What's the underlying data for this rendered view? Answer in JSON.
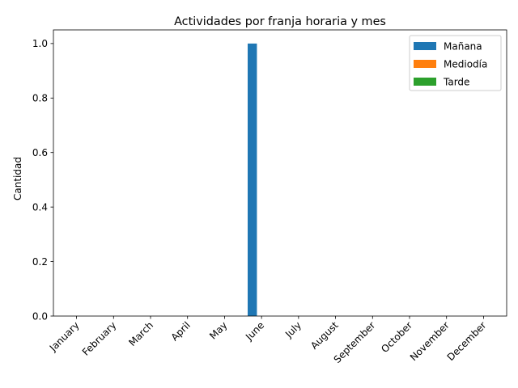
{
  "chart_data": {
    "type": "bar",
    "title": "Actividades por franja horaria y mes",
    "xlabel": "",
    "ylabel": "Cantidad",
    "categories": [
      "January",
      "February",
      "March",
      "April",
      "May",
      "June",
      "July",
      "August",
      "September",
      "October",
      "November",
      "December"
    ],
    "series": [
      {
        "name": "Mañana",
        "color": "#1f77b4",
        "values": [
          0,
          0,
          0,
          0,
          0,
          1,
          0,
          0,
          0,
          0,
          0,
          0
        ]
      },
      {
        "name": "Mediodía",
        "color": "#ff7f0e",
        "values": [
          0,
          0,
          0,
          0,
          0,
          0,
          0,
          0,
          0,
          0,
          0,
          0
        ]
      },
      {
        "name": "Tarde",
        "color": "#2ca02c",
        "values": [
          0,
          0,
          0,
          0,
          0,
          0,
          0,
          0,
          0,
          0,
          0,
          0
        ]
      }
    ],
    "ylim": [
      0,
      1.05
    ],
    "yticks": [
      "0.0",
      "0.2",
      "0.4",
      "0.6",
      "0.8",
      "1.0"
    ],
    "grid": false,
    "legend_position": "top-right"
  }
}
